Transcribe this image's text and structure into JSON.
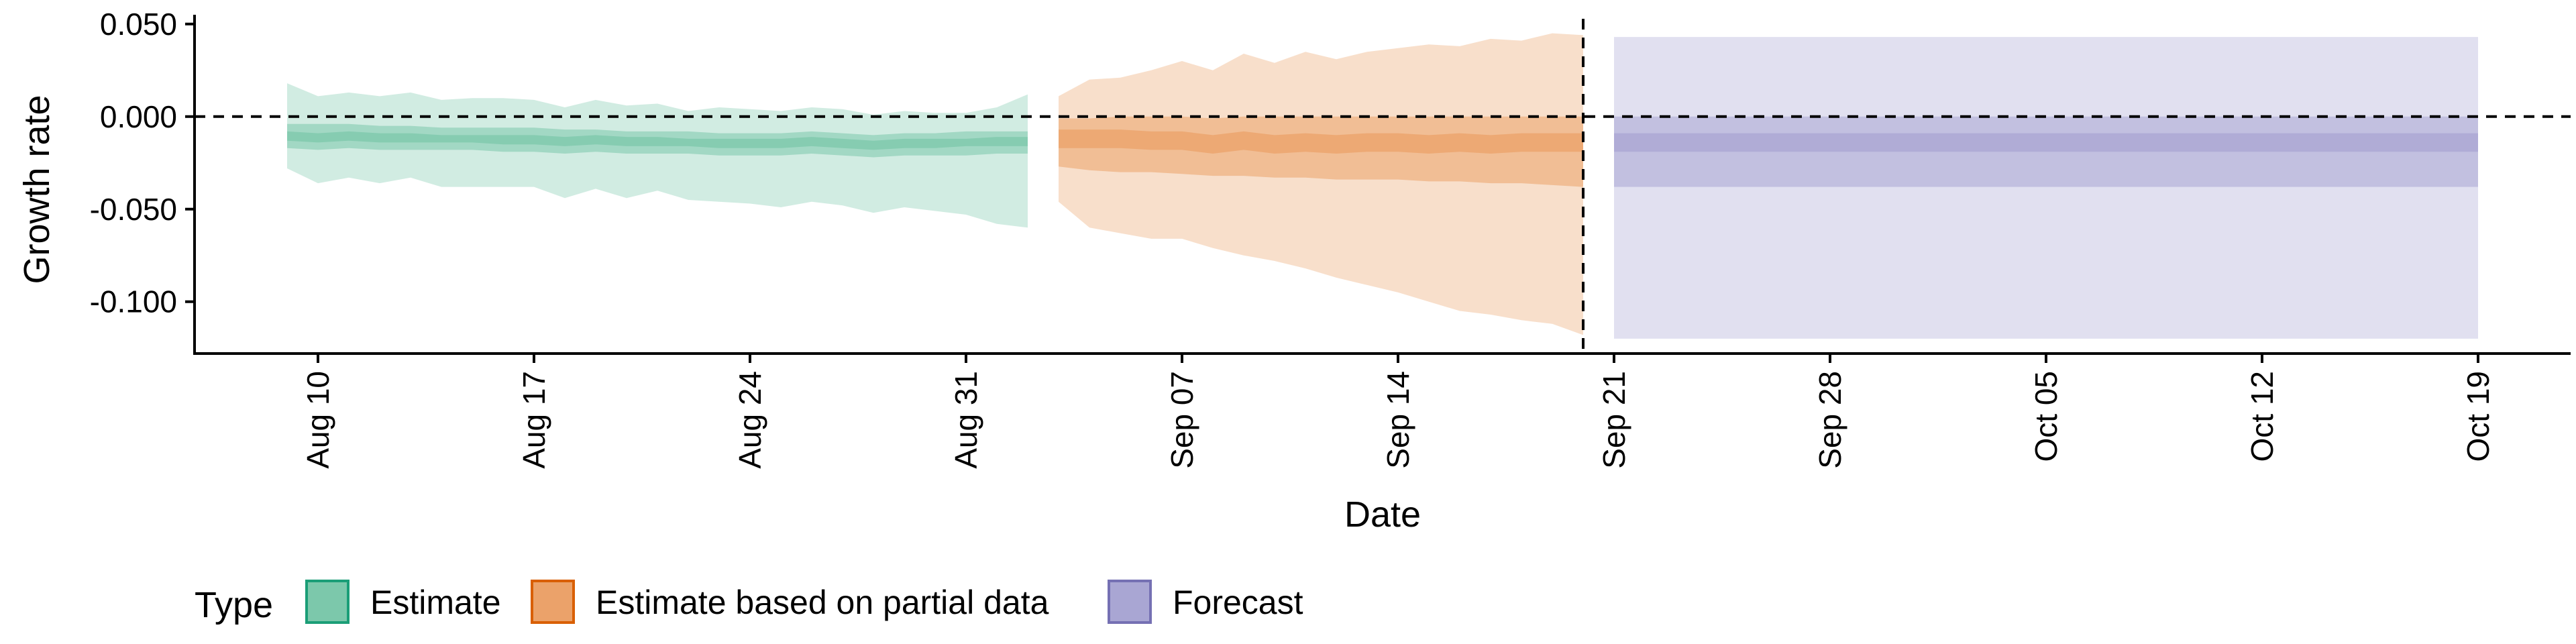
{
  "chart_data": {
    "type": "area",
    "title": "",
    "xlabel": "Date",
    "ylabel": "Growth rate",
    "xlim": [
      "2020-08-06",
      "2020-10-22"
    ],
    "ylim": [
      -0.128,
      0.055
    ],
    "x_ticks": [
      "2020-08-10",
      "2020-08-17",
      "2020-08-24",
      "2020-08-31",
      "2020-09-07",
      "2020-09-14",
      "2020-09-21",
      "2020-09-28",
      "2020-10-05",
      "2020-10-12",
      "2020-10-19"
    ],
    "x_tick_labels": [
      "Aug 10",
      "Aug 17",
      "Aug 24",
      "Aug 31",
      "Sep 07",
      "Sep 14",
      "Sep 21",
      "Sep 28",
      "Oct 05",
      "Oct 12",
      "Oct 19"
    ],
    "y_ticks": [
      0.05,
      0.0,
      -0.05,
      -0.1
    ],
    "y_tick_labels": [
      "0.050",
      "0.000",
      "-0.050",
      "-0.100"
    ],
    "hline": 0,
    "vline": "2020-09-20",
    "grid": false,
    "legend": {
      "title": "Type",
      "position": "bottom-left",
      "items": [
        {
          "label": "Estimate",
          "fill": "#7cc8ab",
          "stroke": "#1b9e77"
        },
        {
          "label": "Estimate based on partial data",
          "fill": "#eba26a",
          "stroke": "#d95f02"
        },
        {
          "label": "Forecast",
          "fill": "#a9a6d3",
          "stroke": "#7570b3"
        }
      ]
    },
    "series": [
      {
        "name": "Estimate",
        "color": "#1b9e77",
        "x": [
          "2020-08-09",
          "2020-08-10",
          "2020-08-11",
          "2020-08-12",
          "2020-08-13",
          "2020-08-14",
          "2020-08-15",
          "2020-08-16",
          "2020-08-17",
          "2020-08-18",
          "2020-08-19",
          "2020-08-20",
          "2020-08-21",
          "2020-08-22",
          "2020-08-23",
          "2020-08-24",
          "2020-08-25",
          "2020-08-26",
          "2020-08-27",
          "2020-08-28",
          "2020-08-29",
          "2020-08-30",
          "2020-08-31",
          "2020-09-01",
          "2020-09-02"
        ],
        "bands": [
          {
            "lower": [
              -0.028,
              -0.036,
              -0.033,
              -0.036,
              -0.033,
              -0.038,
              -0.038,
              -0.038,
              -0.038,
              -0.044,
              -0.039,
              -0.044,
              -0.04,
              -0.045,
              -0.046,
              -0.047,
              -0.049,
              -0.046,
              -0.048,
              -0.052,
              -0.049,
              -0.051,
              -0.053,
              -0.058,
              -0.06
            ],
            "upper": [
              0.018,
              0.011,
              0.013,
              0.011,
              0.013,
              0.009,
              0.01,
              0.01,
              0.009,
              0.005,
              0.009,
              0.006,
              0.007,
              0.003,
              0.005,
              0.004,
              0.003,
              0.005,
              0.004,
              0.001,
              0.003,
              0.002,
              0.002,
              0.005,
              0.012
            ]
          },
          {
            "lower": [
              -0.017,
              -0.018,
              -0.017,
              -0.018,
              -0.018,
              -0.018,
              -0.018,
              -0.019,
              -0.019,
              -0.02,
              -0.019,
              -0.02,
              -0.02,
              -0.02,
              -0.021,
              -0.021,
              -0.021,
              -0.02,
              -0.021,
              -0.022,
              -0.021,
              -0.021,
              -0.021,
              -0.02,
              -0.02
            ],
            "upper": [
              -0.004,
              -0.004,
              -0.004,
              -0.005,
              -0.005,
              -0.006,
              -0.006,
              -0.006,
              -0.006,
              -0.007,
              -0.007,
              -0.008,
              -0.008,
              -0.008,
              -0.009,
              -0.009,
              -0.009,
              -0.008,
              -0.009,
              -0.01,
              -0.009,
              -0.009,
              -0.008,
              -0.008,
              -0.008
            ]
          },
          {
            "lower": [
              -0.013,
              -0.014,
              -0.013,
              -0.014,
              -0.014,
              -0.014,
              -0.014,
              -0.015,
              -0.015,
              -0.016,
              -0.015,
              -0.016,
              -0.016,
              -0.016,
              -0.017,
              -0.017,
              -0.017,
              -0.016,
              -0.017,
              -0.018,
              -0.017,
              -0.017,
              -0.016,
              -0.016,
              -0.016
            ],
            "upper": [
              -0.008,
              -0.009,
              -0.008,
              -0.009,
              -0.009,
              -0.01,
              -0.01,
              -0.01,
              -0.01,
              -0.011,
              -0.01,
              -0.011,
              -0.011,
              -0.012,
              -0.012,
              -0.012,
              -0.012,
              -0.011,
              -0.012,
              -0.013,
              -0.012,
              -0.012,
              -0.012,
              -0.011,
              -0.011
            ]
          }
        ]
      },
      {
        "name": "Estimate based on partial data",
        "color": "#d95f02",
        "x": [
          "2020-09-03",
          "2020-09-04",
          "2020-09-05",
          "2020-09-06",
          "2020-09-07",
          "2020-09-08",
          "2020-09-09",
          "2020-09-10",
          "2020-09-11",
          "2020-09-12",
          "2020-09-13",
          "2020-09-14",
          "2020-09-15",
          "2020-09-16",
          "2020-09-17",
          "2020-09-18",
          "2020-09-19",
          "2020-09-20"
        ],
        "bands": [
          {
            "lower": [
              -0.046,
              -0.06,
              -0.063,
              -0.066,
              -0.066,
              -0.071,
              -0.075,
              -0.078,
              -0.082,
              -0.087,
              -0.091,
              -0.095,
              -0.1,
              -0.105,
              -0.107,
              -0.11,
              -0.112,
              -0.118
            ],
            "upper": [
              0.011,
              0.02,
              0.021,
              0.025,
              0.03,
              0.025,
              0.034,
              0.029,
              0.035,
              0.031,
              0.035,
              0.037,
              0.039,
              0.038,
              0.042,
              0.041,
              0.045,
              0.044
            ]
          },
          {
            "lower": [
              -0.027,
              -0.029,
              -0.03,
              -0.03,
              -0.031,
              -0.032,
              -0.032,
              -0.033,
              -0.033,
              -0.034,
              -0.034,
              -0.034,
              -0.035,
              -0.035,
              -0.036,
              -0.036,
              -0.037,
              -0.038
            ],
            "upper": [
              -0.001,
              -0.001,
              0.0,
              0.0,
              0.0,
              -0.001,
              0.0,
              0.0,
              0.0,
              0.0,
              0.0,
              0.0,
              0.0,
              0.0,
              0.0,
              0.0,
              0.0,
              0.0
            ]
          },
          {
            "lower": [
              -0.017,
              -0.017,
              -0.017,
              -0.018,
              -0.018,
              -0.02,
              -0.018,
              -0.02,
              -0.019,
              -0.02,
              -0.019,
              -0.019,
              -0.02,
              -0.019,
              -0.02,
              -0.019,
              -0.019,
              -0.019
            ],
            "upper": [
              -0.007,
              -0.007,
              -0.007,
              -0.008,
              -0.008,
              -0.01,
              -0.008,
              -0.01,
              -0.009,
              -0.01,
              -0.009,
              -0.009,
              -0.01,
              -0.009,
              -0.01,
              -0.009,
              -0.009,
              -0.009
            ]
          }
        ]
      },
      {
        "name": "Forecast",
        "color": "#7570b3",
        "x": [
          "2020-09-21",
          "2020-10-19"
        ],
        "bands": [
          {
            "lower": [
              -0.12,
              -0.12
            ],
            "upper": [
              0.043,
              0.043
            ]
          },
          {
            "lower": [
              -0.038,
              -0.038
            ],
            "upper": [
              0.0,
              0.0
            ]
          },
          {
            "lower": [
              -0.019,
              -0.019
            ],
            "upper": [
              -0.009,
              -0.009
            ]
          }
        ]
      }
    ]
  }
}
